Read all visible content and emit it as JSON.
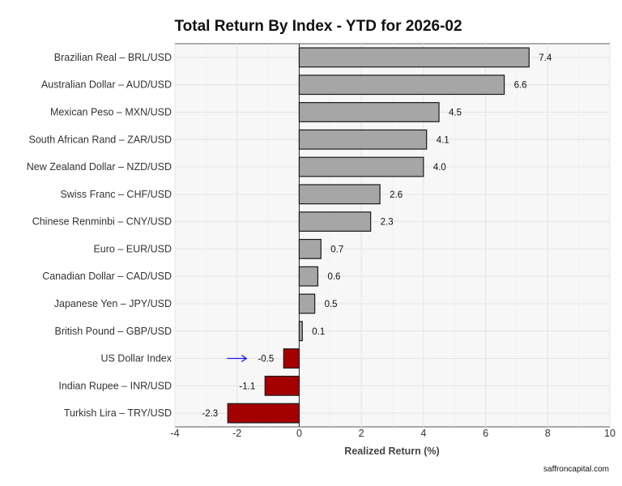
{
  "chart_data": {
    "type": "bar",
    "orientation": "horizontal",
    "title": "Total Return By Index - YTD for 2026-02",
    "xlabel": "Realized Return (%)",
    "ylabel": "",
    "xlim": [
      -4,
      10
    ],
    "xticks": [
      -4,
      -2,
      0,
      2,
      4,
      6,
      8,
      10
    ],
    "grid": true,
    "categories": [
      "Brazilian Real – BRL/USD",
      "Australian Dollar – AUD/USD",
      "Mexican Peso – MXN/USD",
      "South African Rand – ZAR/USD",
      "New Zealand Dollar – NZD/USD",
      "Swiss Franc – CHF/USD",
      "Chinese Renminbi – CNY/USD",
      "Euro – EUR/USD",
      "Canadian Dollar – CAD/USD",
      "Japanese Yen – JPY/USD",
      "British Pound – GBP/USD",
      "US Dollar Index",
      "Indian Rupee – INR/USD",
      "Turkish Lira – TRY/USD"
    ],
    "values": [
      7.4,
      6.6,
      4.5,
      4.1,
      4.0,
      2.6,
      2.3,
      0.7,
      0.6,
      0.5,
      0.1,
      -0.5,
      -1.1,
      -2.3
    ],
    "value_labels": [
      "7.4",
      "6.6",
      "4.5",
      "4.1",
      "4.0",
      "2.6",
      "2.3",
      "0.7",
      "0.6",
      "0.5",
      "0.1",
      "-0.5",
      "-1.1",
      "-2.3"
    ],
    "highlight_category": "US Dollar Index",
    "colors": {
      "positive": "#a6a6a6",
      "negative": "#a50000",
      "bar_stroke": "#1a1a1a",
      "arrow": "#1a1aff",
      "panel_bg": "#f7f7f7",
      "grid": "#e4e4e4"
    }
  },
  "caption": "saffroncapital.com"
}
